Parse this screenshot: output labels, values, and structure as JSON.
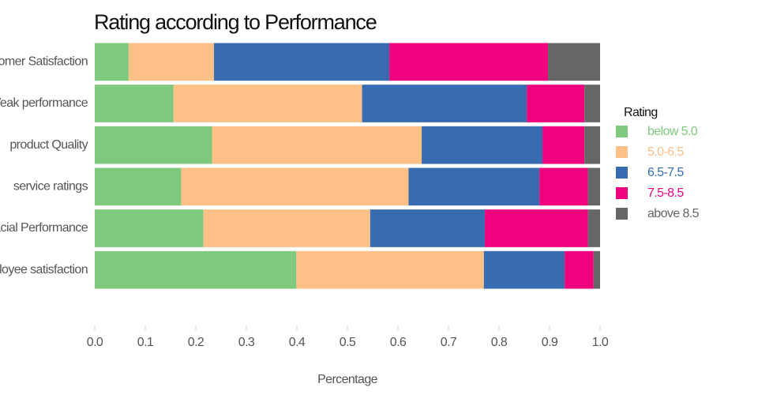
{
  "chart_data": {
    "type": "stacked-barh",
    "title": "Rating according to Performance",
    "x_label": "Percentage",
    "categories": [
      "omer Satisfaction",
      "Veak performance",
      "product Quality",
      "service ratings",
      "acial Performance",
      "loyee satisfaction"
    ],
    "series": [
      {
        "name": "below 5.0",
        "color": "#7fc97f",
        "values": [
          0.067,
          0.156,
          0.232,
          0.171,
          0.215,
          0.399
        ]
      },
      {
        "name": "5.0-6.5",
        "color": "#fdc086",
        "values": [
          0.169,
          0.373,
          0.415,
          0.45,
          0.33,
          0.371
        ]
      },
      {
        "name": "6.5-7.5",
        "color": "#386cb0",
        "values": [
          0.347,
          0.326,
          0.239,
          0.259,
          0.227,
          0.16
        ]
      },
      {
        "name": "7.5-8.5",
        "color": "#f0027f",
        "values": [
          0.314,
          0.114,
          0.083,
          0.096,
          0.204,
          0.057
        ]
      },
      {
        "name": "above 8.5",
        "color": "#666666",
        "values": [
          0.103,
          0.031,
          0.031,
          0.024,
          0.024,
          0.013
        ]
      }
    ],
    "legend_title": "Rating",
    "legend": "right",
    "xlim": [
      0,
      1
    ],
    "xticks": [
      {
        "value": 0,
        "label": "0.0"
      },
      0.1,
      0.2,
      0.3,
      0.4,
      0.5,
      0.6,
      0.7,
      0.8,
      0.9,
      {
        "value": 1,
        "label": "1.0"
      }
    ],
    "grid": false
  }
}
